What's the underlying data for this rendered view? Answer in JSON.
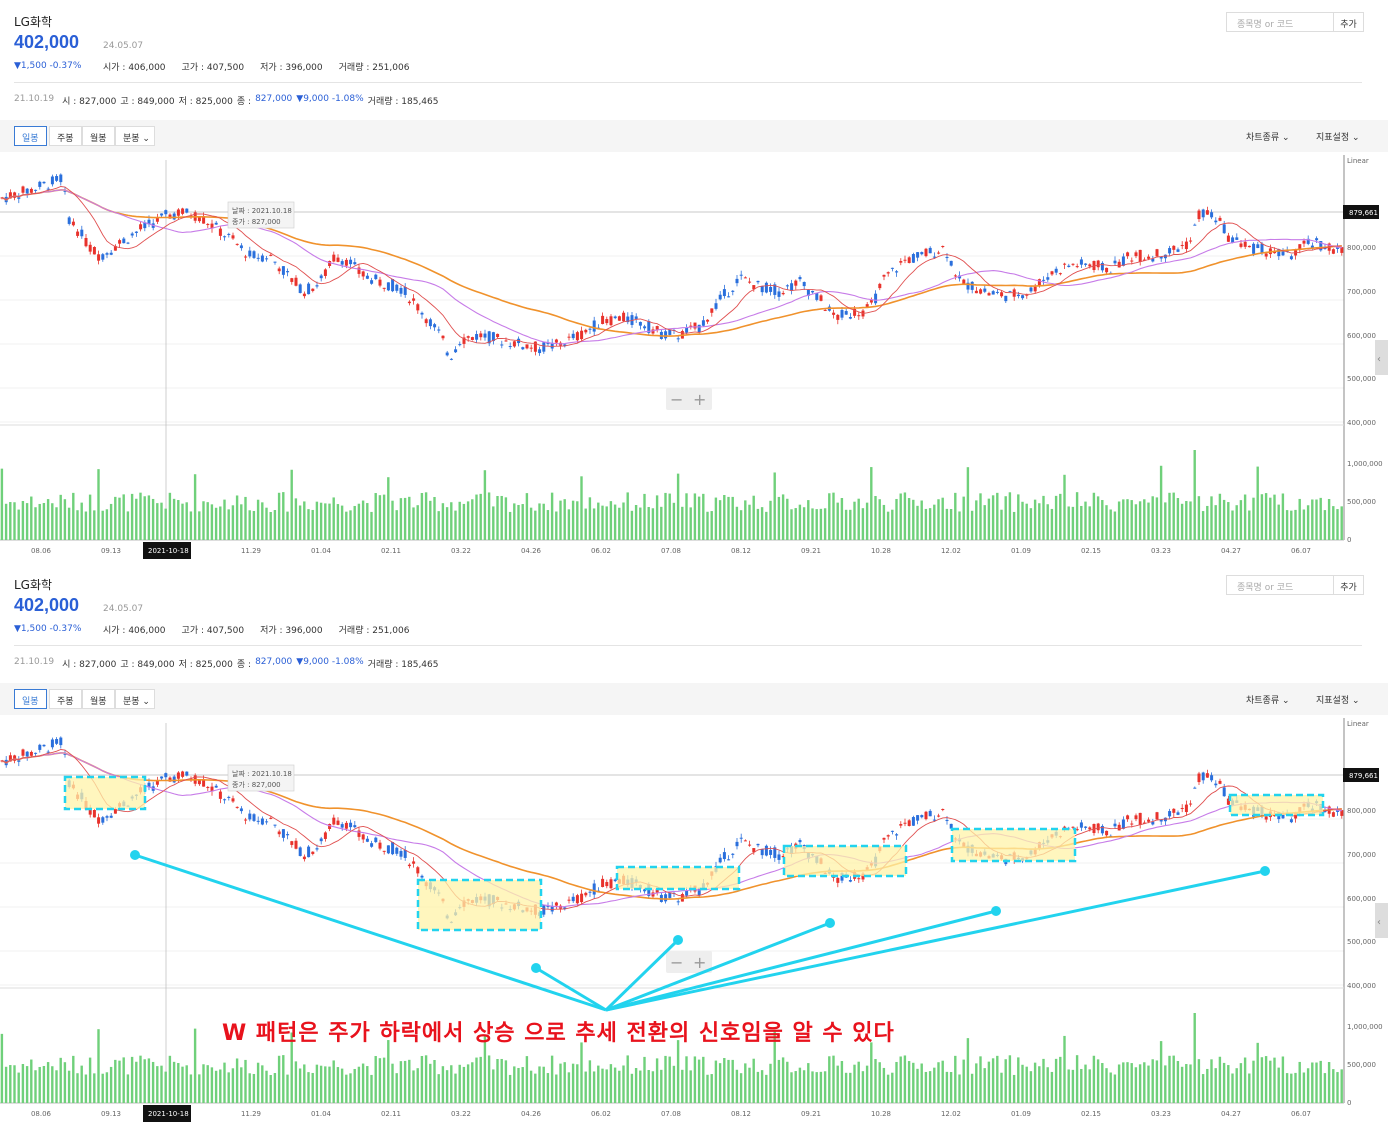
{
  "stock": {
    "name": "LG화학",
    "price": "402,000",
    "date": "24.05.07",
    "change": "▼1,500 -0.37%",
    "stats": [
      "시가 : 406,000",
      "고가 : 407,500",
      "저가 : 396,000",
      "거래량 : 251,006"
    ]
  },
  "search": {
    "placeholder": "종목명 or 코드",
    "add_label": "추가"
  },
  "info": {
    "date": "21.10.19",
    "open": "시 : 827,000",
    "high": "고 : 849,000",
    "low": "저 : 825,000",
    "close_label": "종 :",
    "close": "827,000",
    "change": "▼9,000 -1.08%",
    "volume": "거래량 : 185,465"
  },
  "tabs": [
    "일봉",
    "주봉",
    "월봉",
    "분봉"
  ],
  "right_tools": [
    "차트종류",
    "지표설정"
  ],
  "chart": {
    "scale_label": "Linear",
    "current_value": "879,661",
    "price_ticks": [
      "800,000",
      "700,000",
      "600,000",
      "500,000",
      "400,000"
    ],
    "volume_ticks": [
      "1,000,000",
      "500,000",
      "0"
    ],
    "x_ticks": [
      "08.06",
      "09.13",
      "2021-10-18",
      "11.29",
      "01.04",
      "02.11",
      "03.22",
      "04.26",
      "06.02",
      "07.08",
      "08.12",
      "09.21",
      "10.28",
      "12.02",
      "01.09",
      "02.15",
      "03.23",
      "04.27",
      "06.07"
    ],
    "crosshair_label": "2021-10-18",
    "tooltip_date": "날짜 : 2021.10.18",
    "tooltip_close": "종가 : 827,000",
    "zoom_minus": "−",
    "zoom_plus": "+"
  },
  "colors": {
    "up": "#e8322c",
    "down": "#2a6fdc",
    "volume": "#6fd07a",
    "ma_red": "#e05050",
    "ma_purple": "#c77ce8",
    "ma_orange": "#f0922c",
    "highlight": "#fff3a8",
    "highlight_border": "#22d3ee",
    "annotation": "#e8121c"
  },
  "annotation": "W 패턴은 주가 하락에서 상승 으로 추세 전환의 신호임을 알 수 있다"
}
